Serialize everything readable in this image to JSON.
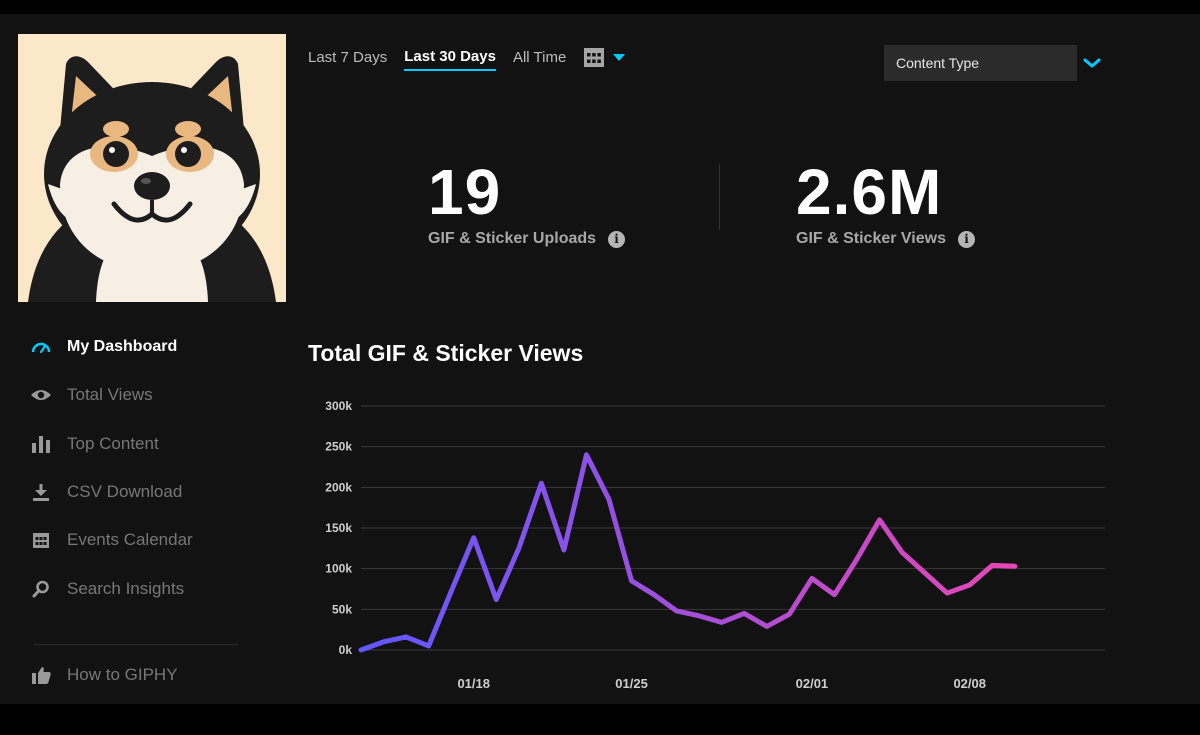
{
  "range_tabs": [
    {
      "label": "Last 7 Days",
      "active": false
    },
    {
      "label": "Last 30 Days",
      "active": true
    },
    {
      "label": "All Time",
      "active": false
    }
  ],
  "content_type": {
    "label": "Content Type"
  },
  "stats": {
    "uploads": {
      "value": "19",
      "label": "GIF & Sticker Uploads"
    },
    "views": {
      "value": "2.6M",
      "label": "GIF & Sticker Views"
    },
    "info_glyph": "i"
  },
  "sidebar": {
    "items": [
      {
        "label": "My Dashboard",
        "icon": "gauge-icon",
        "active": true
      },
      {
        "label": "Total Views",
        "icon": "eye-icon",
        "active": false
      },
      {
        "label": "Top Content",
        "icon": "bar-chart-icon",
        "active": false
      },
      {
        "label": "CSV Download",
        "icon": "download-icon",
        "active": false
      },
      {
        "label": "Events Calendar",
        "icon": "calendar-icon",
        "active": false
      },
      {
        "label": "Search Insights",
        "icon": "search-icon",
        "active": false
      },
      {
        "label": "How to GIPHY",
        "icon": "thumbs-up-icon",
        "active": false
      }
    ]
  },
  "colors": {
    "accent": "#00ccff",
    "line_start": "#6157ff",
    "line_end": "#e646b6",
    "background": "#121212"
  },
  "chart_data": {
    "type": "line",
    "title": "Total GIF & Sticker Views",
    "y_ticks": [
      "0k",
      "50k",
      "100k",
      "150k",
      "200k",
      "250k",
      "300k"
    ],
    "ylim": [
      0,
      300000
    ],
    "x_ticks": [
      {
        "label": "01/18",
        "x": 5
      },
      {
        "label": "01/25",
        "x": 12
      },
      {
        "label": "02/01",
        "x": 20
      },
      {
        "label": "02/08",
        "x": 27
      }
    ],
    "xlim": [
      0,
      33
    ],
    "grid": true,
    "series": [
      {
        "values": [
          0,
          10000,
          16000,
          5000,
          72000,
          138000,
          62000,
          125000,
          205000,
          123000,
          240000,
          185000,
          85000,
          68000,
          48000,
          42000,
          34000,
          45000,
          29000,
          44000,
          88000,
          68000,
          112000,
          160000,
          120000,
          95000,
          70000,
          80000,
          104000,
          103000
        ]
      }
    ]
  }
}
